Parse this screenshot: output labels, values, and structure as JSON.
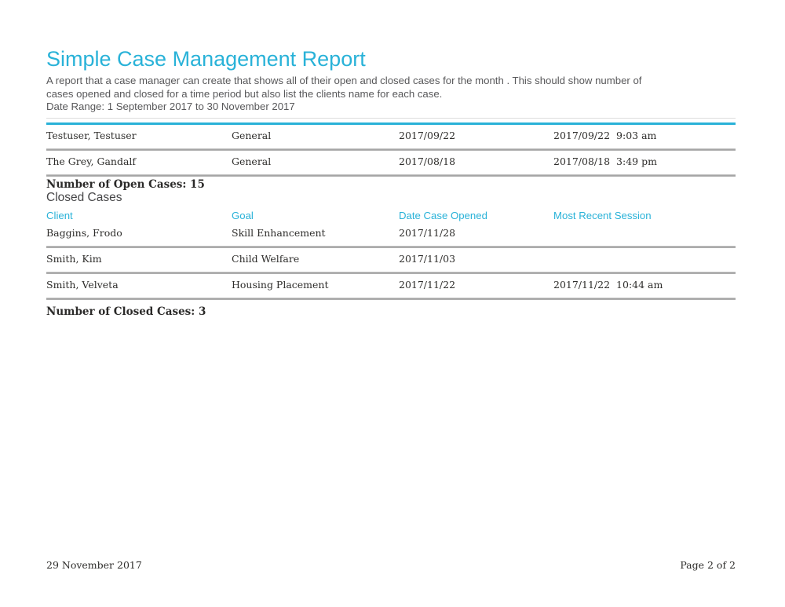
{
  "page": {
    "title": "Simple Case Management Report",
    "description": "A report that a case manager can create that shows all of their open and closed cases for the month . This should show number of cases opened and closed for a time period but also list the clients name for each case.",
    "date_range": "Date Range: 1 September 2017 to 30 November 2017"
  },
  "colors": {
    "accent": "#29b2d8",
    "separator": "#a8a8a8",
    "body_text": "#2e2d2b",
    "intro_text": "#58585a"
  },
  "open_cases": {
    "rows": [
      {
        "client": "Testuser, Testuser",
        "goal": "General",
        "date_opened": "2017/09/22",
        "session_date": "2017/09/22",
        "session_time": "9:03 am"
      },
      {
        "client": "The Grey, Gandalf",
        "goal": "General",
        "date_opened": "2017/08/18",
        "session_date": "2017/08/18",
        "session_time": "3:49 pm"
      }
    ],
    "summary": "Number of Open Cases: 15"
  },
  "closed_cases": {
    "heading": "Closed Cases",
    "columns": {
      "client": "Client",
      "goal": "Goal",
      "date_opened": "Date Case Opened",
      "session": "Most Recent Session"
    },
    "rows": [
      {
        "client": "Baggins, Frodo",
        "goal": "Skill Enhancement",
        "date_opened": "2017/11/28",
        "session_date": "",
        "session_time": ""
      },
      {
        "client": "Smith, Kim",
        "goal": "Child Welfare",
        "date_opened": "2017/11/03",
        "session_date": "",
        "session_time": ""
      },
      {
        "client": "Smith, Velveta",
        "goal": "Housing Placement",
        "date_opened": "2017/11/22",
        "session_date": "2017/11/22",
        "session_time": "10:44 am"
      }
    ],
    "summary": "Number of Closed Cases: 3"
  },
  "footer": {
    "date": "29 November 2017",
    "page": "Page 2 of 2"
  }
}
